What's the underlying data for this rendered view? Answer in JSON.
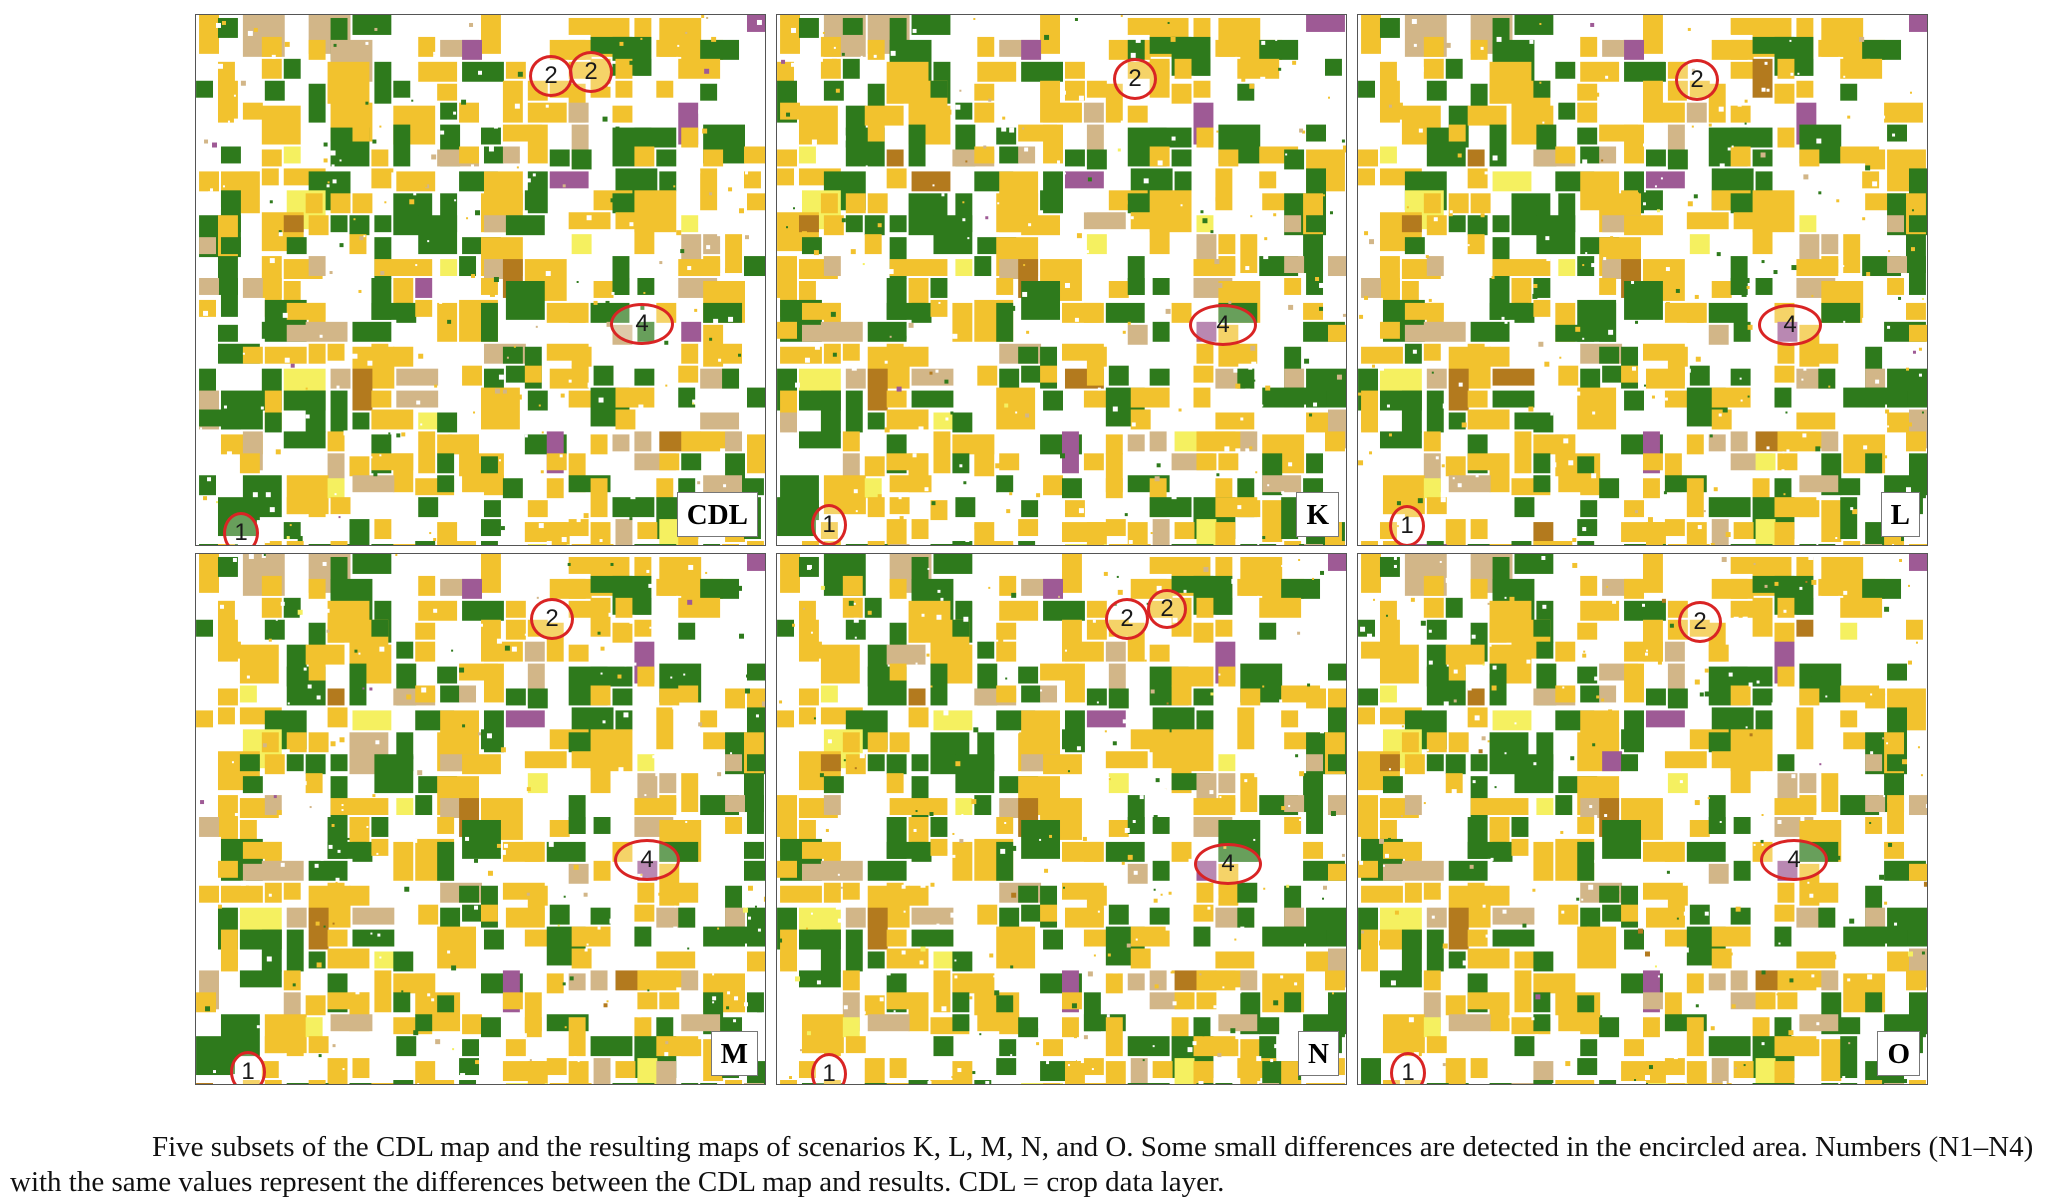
{
  "panels": [
    {
      "label": "CDL",
      "markers": [
        "1",
        "2",
        "2",
        "4"
      ]
    },
    {
      "label": "K",
      "markers": [
        "1",
        "2",
        "4"
      ]
    },
    {
      "label": "L",
      "markers": [
        "1",
        "2",
        "4"
      ]
    },
    {
      "label": "M",
      "markers": [
        "1",
        "2",
        "4"
      ]
    },
    {
      "label": "N",
      "markers": [
        "1",
        "2",
        "2",
        "4"
      ]
    },
    {
      "label": "O",
      "markers": [
        "1",
        "2",
        "4"
      ]
    }
  ],
  "legend_colors": {
    "yellow_fields": "#f2c22e",
    "green_fields": "#2e7a1c",
    "tan_fields": "#d2b688",
    "purple_fields": "#9e5a95",
    "brown_fields": "#b37a1e",
    "light_yellow_fields": "#f5f060",
    "marker_ring": "#d92424"
  },
  "caption": "Five subsets of the CDL map and the resulting maps of scenarios K, L, M, N, and O. Some small differences are detected in the encircled area. Numbers (N1–N4) with the same values represent the differences between the CDL map and results. CDL = crop data layer."
}
